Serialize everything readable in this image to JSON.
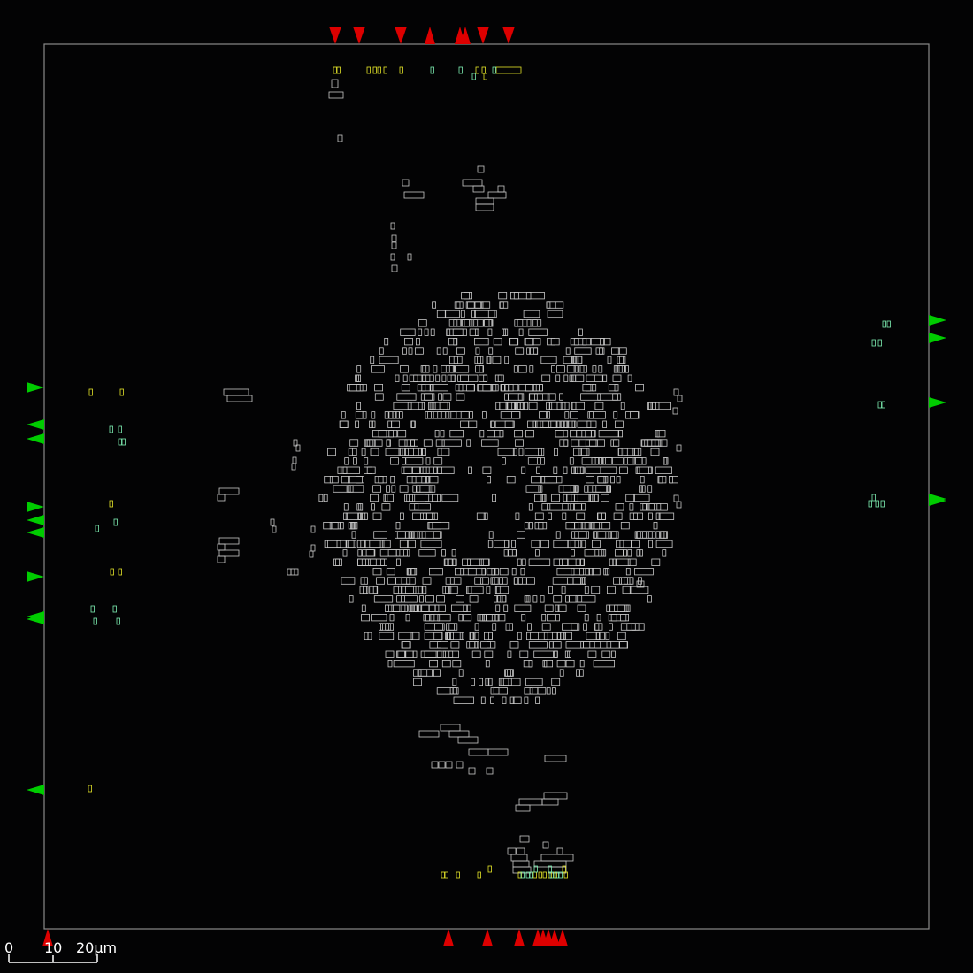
{
  "scale_bar": {
    "unit": "µm",
    "labels": [
      "0",
      "10",
      "20µm"
    ]
  },
  "colors": {
    "background": "#030304",
    "die_outline": "#8a8a8a",
    "cell_outline": "#c8c8c8",
    "macro_yellow": "#e6e62a",
    "macro_green": "#7ff0b4",
    "pin_red": "#dd0000",
    "pin_green": "#00cc00",
    "scale_bar": "#ffffff"
  },
  "legend_note": ""
}
